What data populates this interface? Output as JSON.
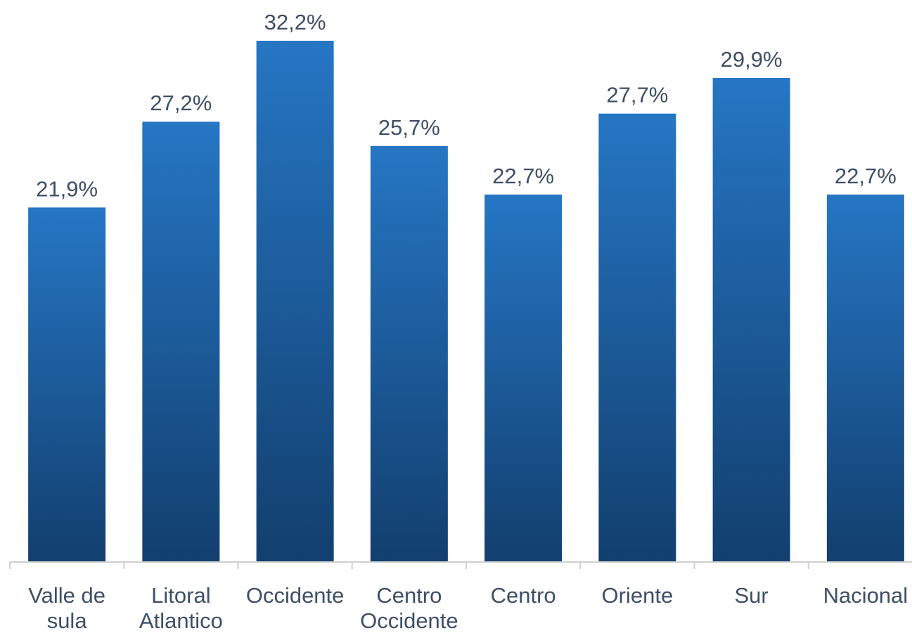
{
  "chart_data": {
    "type": "bar",
    "categories": [
      [
        "Valle de",
        "sula"
      ],
      [
        "Litoral",
        "Atlantico"
      ],
      [
        "Occidente"
      ],
      [
        "Centro",
        "Occidente"
      ],
      [
        "Centro"
      ],
      [
        "Oriente"
      ],
      [
        "Sur"
      ],
      [
        "Nacional"
      ]
    ],
    "values": [
      21.9,
      27.2,
      32.2,
      25.7,
      22.7,
      27.7,
      29.9,
      22.7
    ],
    "value_labels": [
      "21,9%",
      "27,2%",
      "32,2%",
      "25,7%",
      "22,7%",
      "27,7%",
      "29,9%",
      "22,7%"
    ],
    "ylim": [
      0,
      32.2
    ],
    "grid": false,
    "legend": "none",
    "colors": {
      "bar_top": "#2676c4",
      "bar_bottom": "#123f6e",
      "label_text": "#3d4f66",
      "axis": "#d0d0d0"
    }
  }
}
